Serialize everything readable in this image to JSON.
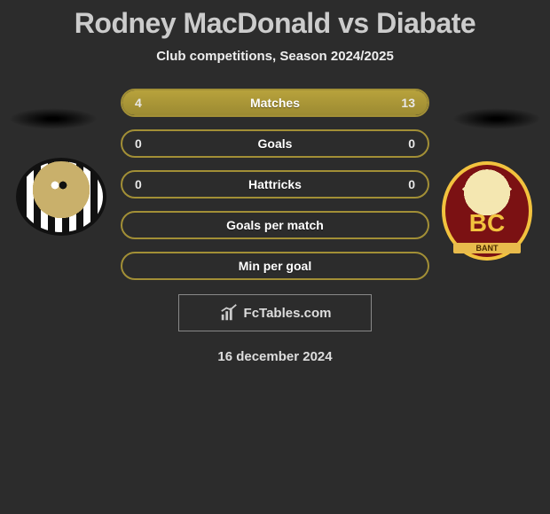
{
  "title": "Rodney MacDonald vs Diabate",
  "subtitle": "Club competitions, Season 2024/2025",
  "date": "16 december 2024",
  "footer_label": "FcTables.com",
  "stat_colors": {
    "bar_fill": "#a9943a",
    "bar_fill_light": "#b8a23c",
    "border_empty": "#a28f36",
    "text": "#e8e8e8",
    "bg": "#2c2c2c"
  },
  "left_club": {
    "name": "Notts County",
    "badge_text": ""
  },
  "right_club": {
    "name": "Bradford City",
    "badge_text": "BC",
    "banner": "BANT"
  },
  "stats": [
    {
      "label": "Matches",
      "left_value": "4",
      "right_value": "13",
      "left_pct": 24,
      "right_pct": 76,
      "empty": false
    },
    {
      "label": "Goals",
      "left_value": "0",
      "right_value": "0",
      "left_pct": 0,
      "right_pct": 0,
      "empty": false,
      "full_border": true
    },
    {
      "label": "Hattricks",
      "left_value": "0",
      "right_value": "0",
      "left_pct": 0,
      "right_pct": 0,
      "empty": false,
      "full_border": true
    },
    {
      "label": "Goals per match",
      "left_value": "",
      "right_value": "",
      "left_pct": 0,
      "right_pct": 0,
      "empty": true
    },
    {
      "label": "Min per goal",
      "left_value": "",
      "right_value": "",
      "left_pct": 0,
      "right_pct": 0,
      "empty": true
    }
  ]
}
